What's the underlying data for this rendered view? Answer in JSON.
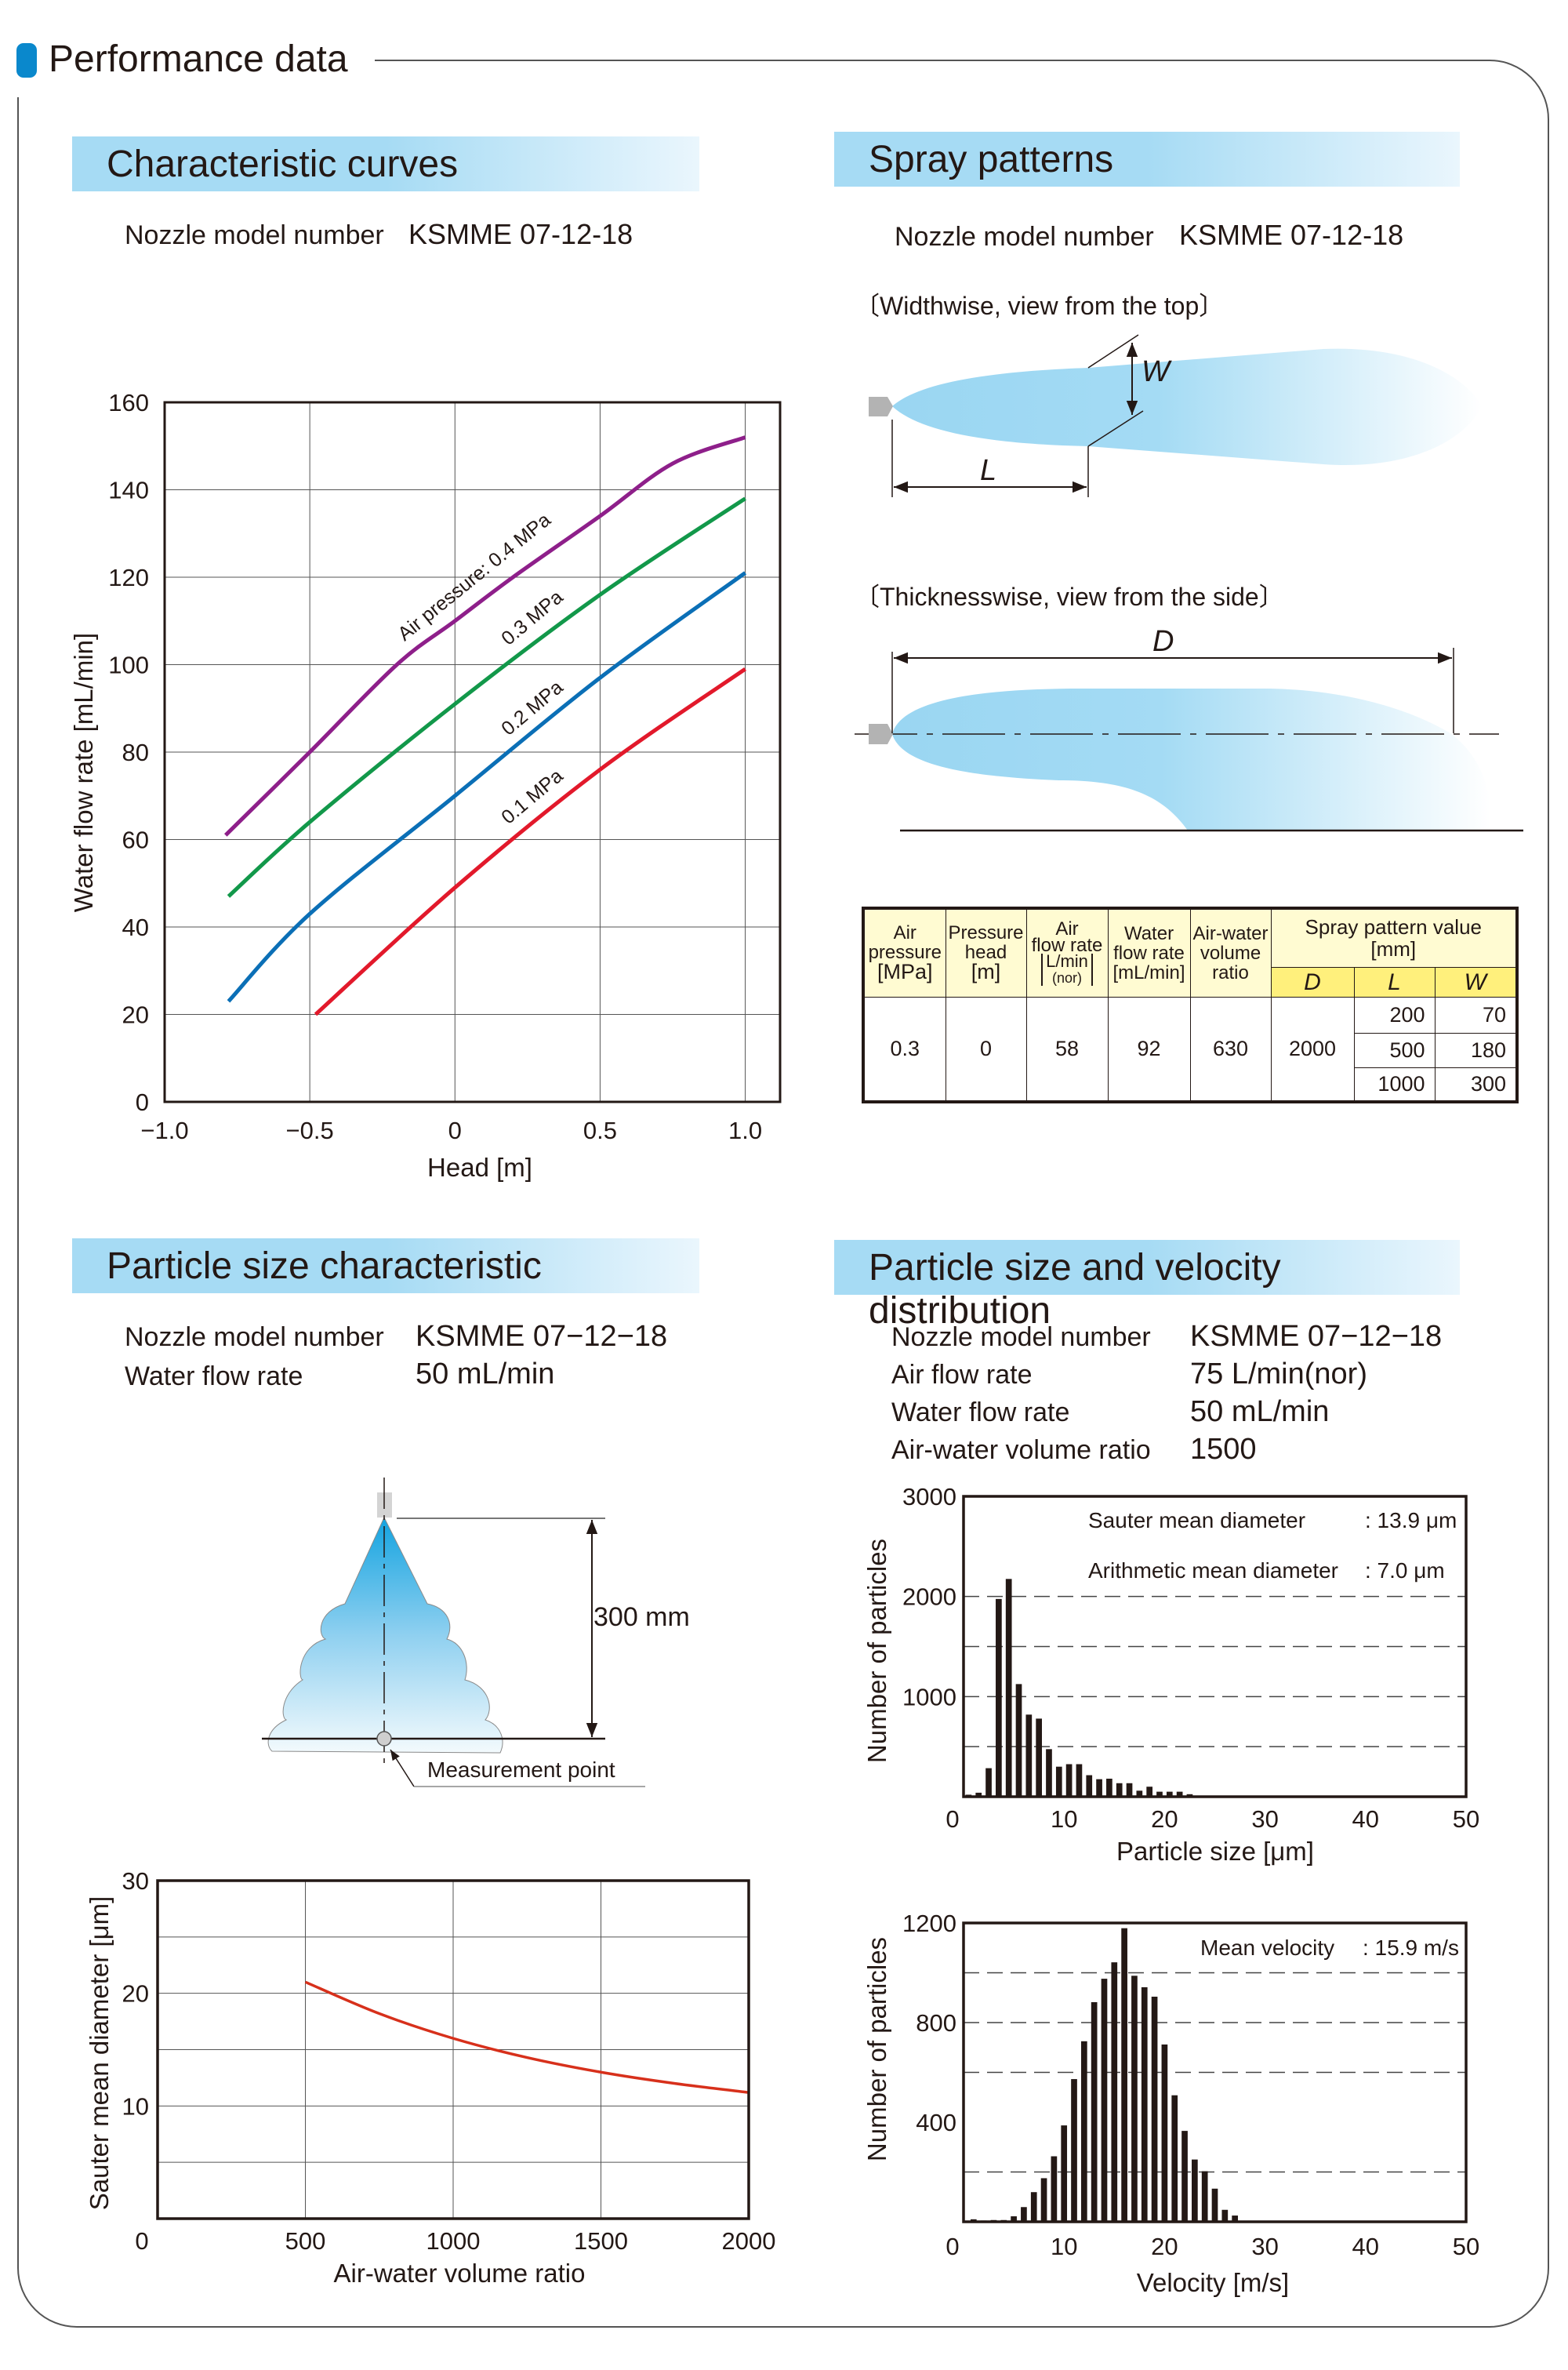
{
  "header": {
    "title": "Performance data",
    "accent": "#0a88cc"
  },
  "characteristic": {
    "title": "Characteristic curves",
    "nozzle_label": "Nozzle model number",
    "nozzle_value": "KSMME 07-12-18"
  },
  "spray": {
    "title": "Spray patterns",
    "nozzle_label": "Nozzle model number",
    "nozzle_value": "KSMME 07-12-18",
    "widthwise_caption": "〔Widthwise, view from the top〕",
    "thicknesswise_caption": "〔Thicknesswise, view from the side〕",
    "w_label": "W",
    "l_label": "L",
    "d_label": "D",
    "table": {
      "headers": {
        "air_pressure": [
          "Air",
          "pressure",
          "[MPa]"
        ],
        "pressure_head": [
          "Pressure",
          "head",
          "[m]"
        ],
        "air_flow": [
          "Air",
          "flow rate"
        ],
        "air_flow_unit_top": "L/min",
        "air_flow_unit_bottom": "(nor)",
        "water_flow": [
          "Water",
          "flow rate",
          "[mL/min]"
        ],
        "ratio": [
          "Air-water",
          "volume",
          "ratio"
        ],
        "spray_value": [
          "Spray pattern value",
          "[mm]"
        ],
        "d": "D",
        "l": "L",
        "w": "W"
      },
      "row": {
        "air_pressure": "0.3",
        "pressure_head": "0",
        "air_flow": "58",
        "water_flow": "92",
        "ratio": "630",
        "d": "2000"
      },
      "lw": [
        {
          "l": "200",
          "w": "70"
        },
        {
          "l": "500",
          "w": "180"
        },
        {
          "l": "1000",
          "w": "300"
        }
      ]
    }
  },
  "particle": {
    "title": "Particle size characteristic",
    "nozzle_label": "Nozzle model number",
    "nozzle_value": "KSMME 07−12−18",
    "water_label": "Water flow rate",
    "water_value": "50 mL/min",
    "distance": "300 mm",
    "measurement_point": "Measurement point"
  },
  "distribution": {
    "title": "Particle size and velocity distribution",
    "rows": [
      {
        "label": "Nozzle model number",
        "value": "KSMME 07−12−18"
      },
      {
        "label": "Air flow rate",
        "value": "75 L/min(nor)"
      },
      {
        "label": "Water flow rate",
        "value": "50 mL/min"
      },
      {
        "label": "Air-water volume ratio",
        "value": "1500"
      }
    ]
  },
  "chart_data": [
    {
      "type": "line",
      "title": "",
      "xlabel": "Head [m]",
      "ylabel": "Water flow rate  [mL/min]",
      "xlim": [
        -1,
        1.12
      ],
      "ylim": [
        0,
        160
      ],
      "grid": true,
      "xticks": [
        -1,
        -0.5,
        0,
        0.5,
        1
      ],
      "xtick_labels": [
        "−1.0",
        "−0.5",
        "0",
        "0.5",
        "1.0"
      ],
      "yticks": [
        0,
        20,
        40,
        60,
        80,
        100,
        120,
        140,
        160
      ],
      "ytick_labels": [
        "0",
        "20",
        "40",
        "60",
        "80",
        "100",
        "120",
        "140",
        "160"
      ],
      "series": [
        {
          "name": "Air pressure: 0.4 MPa",
          "color": "#8e1f8a",
          "x": [
            -0.79,
            -0.5,
            -0.2,
            0,
            0.2,
            0.5,
            0.75,
            1.0
          ],
          "y": [
            61,
            80,
            100,
            110,
            120,
            134,
            146,
            152
          ]
        },
        {
          "name": "0.3 MPa",
          "color": "#12984a",
          "x": [
            -0.78,
            -0.5,
            0,
            0.5,
            1.0
          ],
          "y": [
            47,
            64,
            91,
            116,
            138
          ]
        },
        {
          "name": "0.2 MPa",
          "color": "#0b6fb6",
          "x": [
            -0.78,
            -0.5,
            0,
            0.5,
            1.0
          ],
          "y": [
            23,
            43,
            70,
            97,
            121
          ]
        },
        {
          "name": "0.1 MPa",
          "color": "#e2192b",
          "x": [
            -0.48,
            0,
            0.5,
            1.0
          ],
          "y": [
            20,
            49,
            76,
            99
          ]
        }
      ]
    },
    {
      "type": "line",
      "title": "",
      "xlabel": "Air-water volume ratio",
      "ylabel": "Sauter mean diameter  [μm]",
      "xlim": [
        0,
        2000
      ],
      "ylim": [
        0,
        30
      ],
      "grid": true,
      "xticks": [
        0,
        500,
        1000,
        1500,
        2000
      ],
      "xtick_labels": [
        "0",
        "500",
        "1000",
        "1500",
        "2000"
      ],
      "yticks": [
        10,
        20,
        30
      ],
      "ytick_labels": [
        "10",
        "20",
        "30"
      ],
      "ygrid": [
        5,
        10,
        15,
        20,
        25
      ],
      "series": [
        {
          "name": "Sauter mean diameter",
          "color": "#d7301b",
          "x": [
            500,
            750,
            1000,
            1250,
            1500,
            1750,
            2000
          ],
          "y": [
            21,
            18.2,
            16,
            14.3,
            13,
            12,
            11.2
          ]
        }
      ]
    },
    {
      "type": "bar",
      "title": "",
      "xlabel": "Particle size  [μm]",
      "ylabel": "Number of particles",
      "xlim": [
        0,
        50
      ],
      "ylim": [
        0,
        3000
      ],
      "xticks": [
        0,
        10,
        20,
        30,
        40,
        50
      ],
      "xtick_labels": [
        "0",
        "10",
        "20",
        "30",
        "40",
        "50"
      ],
      "yticks": [
        1000,
        2000,
        3000
      ],
      "ytick_labels": [
        "1000",
        "2000",
        "3000"
      ],
      "ygrid_dashed": [
        500,
        1000,
        1500,
        2000
      ],
      "x": [
        0.5,
        1.5,
        2.5,
        3.5,
        4.5,
        5.5,
        6.5,
        7.5,
        8.5,
        9.5,
        10.5,
        11.5,
        12.5,
        13.5,
        14.5,
        15.5,
        16.5,
        17.5,
        18.5,
        19.5,
        20.5,
        21.5,
        22.5
      ],
      "values": [
        20,
        40,
        285,
        1975,
        2175,
        1125,
        820,
        780,
        475,
        300,
        325,
        325,
        215,
        175,
        180,
        135,
        135,
        60,
        100,
        50,
        50,
        50,
        25
      ],
      "annotations": [
        {
          "label": "Sauter mean diameter",
          "value": ": 13.9 μm"
        },
        {
          "label": "Arithmetic mean diameter",
          "value": ": 7.0 μm"
        }
      ]
    },
    {
      "type": "bar",
      "title": "",
      "xlabel": "Velocity [m/s]",
      "ylabel": "Number of particles",
      "xlim": [
        0,
        50
      ],
      "ylim": [
        0,
        1200
      ],
      "xticks": [
        0,
        10,
        20,
        30,
        40,
        50
      ],
      "xtick_labels": [
        "0",
        "10",
        "20",
        "30",
        "40",
        "50"
      ],
      "yticks": [
        400,
        800,
        1200
      ],
      "ytick_labels": [
        "400",
        "800",
        "1200"
      ],
      "ygrid_dashed": [
        200,
        600,
        800,
        1000
      ],
      "x": [
        1,
        2,
        3,
        4,
        5,
        6,
        7,
        8,
        9,
        10,
        11,
        12,
        13,
        14,
        15,
        16,
        17,
        18,
        19,
        20,
        21,
        22,
        23,
        24,
        25,
        26,
        27
      ],
      "values": [
        10,
        5,
        7,
        7,
        22,
        59,
        119,
        175,
        263,
        387,
        573,
        725,
        882,
        976,
        1042,
        1179,
        988,
        942,
        904,
        712,
        508,
        365,
        250,
        203,
        133,
        48,
        25
      ],
      "annotations": [
        {
          "label": "Mean velocity",
          "value": ": 15.9 m/s"
        }
      ]
    }
  ]
}
